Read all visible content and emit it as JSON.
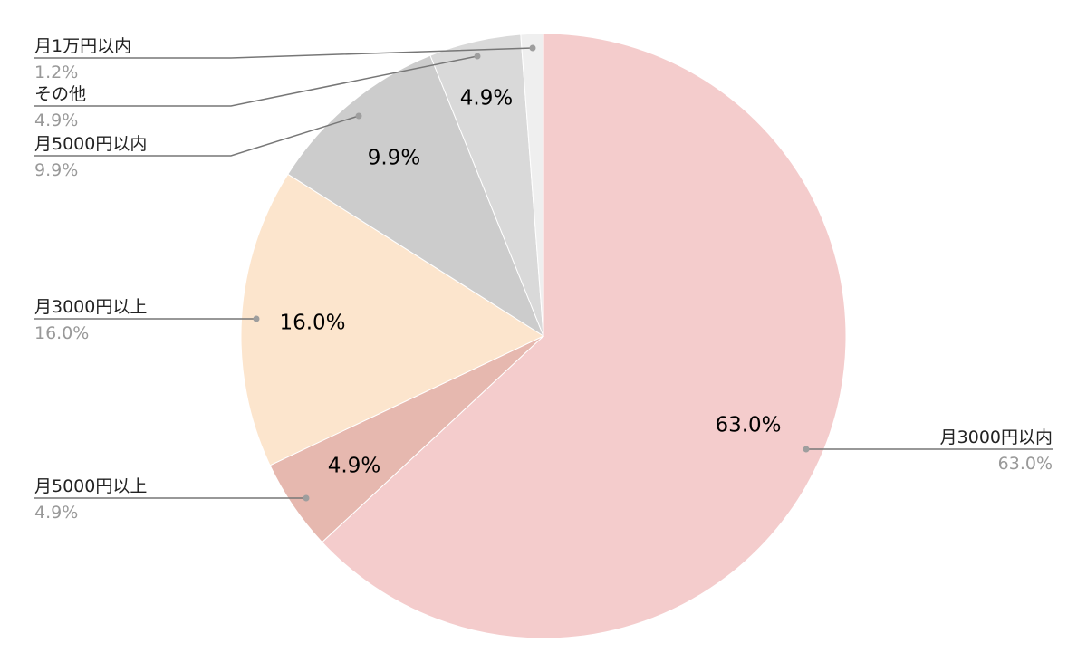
{
  "chart_data": {
    "type": "pie",
    "start_angle_deg": 0,
    "direction": "clockwise",
    "slices": [
      {
        "label": "月3000円以内",
        "value": 63.0,
        "display": "63.0%",
        "color": "#f4cccc"
      },
      {
        "label": "月5000円以上",
        "value": 4.9,
        "display": "4.9%",
        "color": "#e6b8af"
      },
      {
        "label": "月3000円以上",
        "value": 16.0,
        "display": "16.0%",
        "color": "#fce5cd"
      },
      {
        "label": "月5000円以内",
        "value": 9.9,
        "display": "9.9%",
        "color": "#cccccc"
      },
      {
        "label": "その他",
        "value": 4.9,
        "display": "4.9%",
        "color": "#d9d9d9"
      },
      {
        "label": "月1万円以内",
        "value": 1.2,
        "display": "1.2%",
        "color": "#efefef"
      }
    ],
    "legend": "leader-line labels (right and left)",
    "label_color": "#222222",
    "percent_color": "#999999",
    "leader_color": "#777777"
  }
}
